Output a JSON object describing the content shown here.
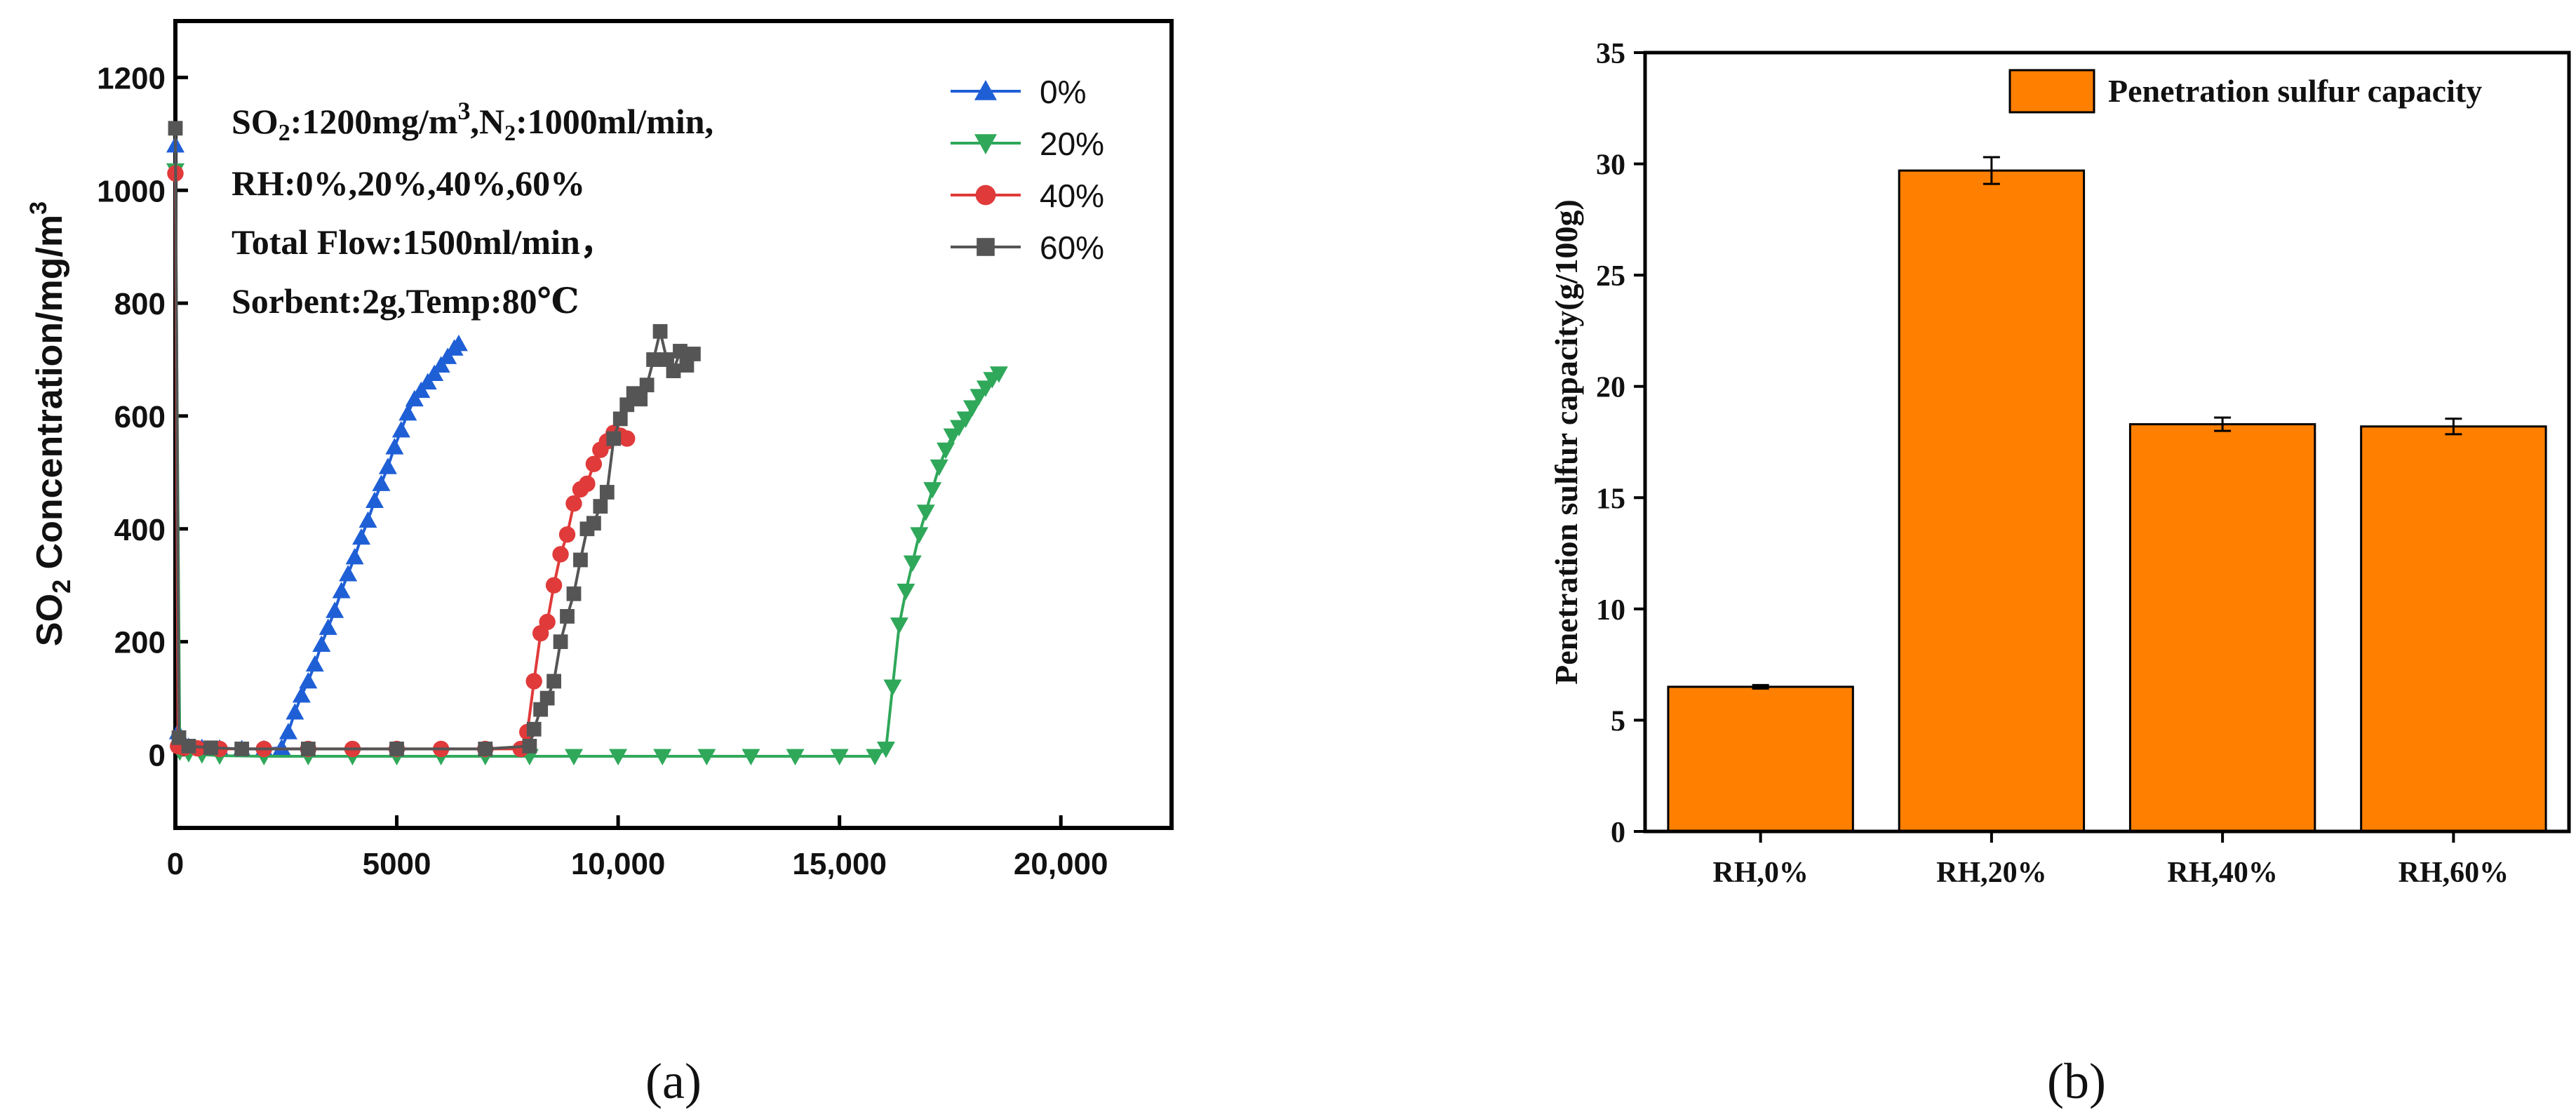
{
  "chart_data": [
    {
      "type": "scatter",
      "panel_label": "(a)",
      "ylabel_main": "SO",
      "ylabel_sub": "2",
      "ylabel_rest": " Concentration/mg/m",
      "ylabel_sup": "3",
      "xlim": [
        0,
        22500
      ],
      "ylim": [
        -130,
        1300
      ],
      "x_ticks": [
        {
          "value": 0,
          "label": "0"
        },
        {
          "value": 5000,
          "label": "5000"
        },
        {
          "value": 10000,
          "label": "10,000"
        },
        {
          "value": 15000,
          "label": "15,000"
        },
        {
          "value": 20000,
          "label": "20,000"
        }
      ],
      "y_ticks": [
        {
          "value": 0,
          "label": "0"
        },
        {
          "value": 200,
          "label": "200"
        },
        {
          "value": 400,
          "label": "400"
        },
        {
          "value": 600,
          "label": "600"
        },
        {
          "value": 800,
          "label": "800"
        },
        {
          "value": 1000,
          "label": "1000"
        },
        {
          "value": 1200,
          "label": "1200"
        }
      ],
      "annotation": {
        "line1_a": "SO",
        "line1_sub": "2",
        "line1_b": ":1200mg/m",
        "line1_sup": "3",
        "line1_c": ",N",
        "line1_sub2": "2",
        "line1_d": ":1000ml/min,",
        "line2": "RH:0%,20%,40%,60%",
        "line3": "Total Flow:1500ml/min，",
        "line4": "Sorbent:2g,Temp:80℃"
      },
      "series": [
        {
          "name": "0%",
          "marker": "triangle-up",
          "color": "#1f5fd6",
          "x": [
            0,
            60,
            150,
            300,
            600,
            1000,
            1500,
            2000,
            2400,
            2550,
            2700,
            2850,
            3000,
            3150,
            3300,
            3450,
            3600,
            3750,
            3900,
            4050,
            4200,
            4350,
            4500,
            4650,
            4800,
            4950,
            5100,
            5250,
            5400,
            5550,
            5700,
            5850,
            6000,
            6150,
            6300,
            6400
          ],
          "y": [
            1080,
            40,
            20,
            14,
            12,
            11,
            10,
            10,
            12,
            40,
            75,
            105,
            130,
            160,
            195,
            225,
            255,
            290,
            320,
            350,
            385,
            415,
            450,
            480,
            510,
            545,
            575,
            605,
            630,
            645,
            660,
            675,
            690,
            705,
            720,
            728
          ]
        },
        {
          "name": "20%",
          "marker": "triangle-down",
          "color": "#2fa85a",
          "x": [
            0,
            100,
            300,
            600,
            1000,
            2000,
            3000,
            4000,
            5000,
            6000,
            7000,
            8000,
            9000,
            10000,
            11000,
            12000,
            13000,
            14000,
            15000,
            15800,
            16050,
            16200,
            16350,
            16500,
            16650,
            16800,
            16950,
            17100,
            17250,
            17400,
            17550,
            17700,
            17850,
            18000,
            18150,
            18300,
            18450,
            18600
          ],
          "y": [
            1035,
            5,
            2,
            0,
            -2,
            -3,
            -3,
            -3,
            -3,
            -3,
            -3,
            -3,
            -3,
            -3,
            -3,
            -3,
            -3,
            -3,
            -3,
            -3,
            10,
            120,
            230,
            290,
            340,
            390,
            430,
            470,
            510,
            540,
            565,
            580,
            595,
            615,
            635,
            650,
            665,
            675
          ]
        },
        {
          "name": "40%",
          "marker": "circle",
          "color": "#e03a3a",
          "x": [
            0,
            60,
            200,
            500,
            1000,
            2000,
            3000,
            4000,
            5000,
            6000,
            7000,
            7800,
            7950,
            8100,
            8250,
            8400,
            8550,
            8700,
            8850,
            9000,
            9150,
            9300,
            9450,
            9600,
            9750,
            9900,
            10050,
            10200
          ],
          "y": [
            1030,
            15,
            12,
            11,
            10,
            10,
            10,
            10,
            10,
            10,
            10,
            10,
            40,
            130,
            215,
            235,
            300,
            355,
            390,
            445,
            470,
            480,
            515,
            540,
            555,
            570,
            565,
            560
          ]
        },
        {
          "name": "60%",
          "marker": "square",
          "color": "#555555",
          "x": [
            0,
            80,
            300,
            800,
            1500,
            3000,
            5000,
            7000,
            8000,
            8100,
            8250,
            8400,
            8550,
            8700,
            8850,
            9000,
            9150,
            9300,
            9450,
            9600,
            9750,
            9900,
            10050,
            10200,
            10350,
            10500,
            10650,
            10800,
            10950,
            11100,
            11250,
            11400,
            11550,
            11700
          ],
          "y": [
            1110,
            30,
            15,
            12,
            10,
            10,
            10,
            10,
            15,
            45,
            80,
            100,
            130,
            200,
            245,
            285,
            345,
            400,
            410,
            440,
            465,
            560,
            595,
            620,
            640,
            630,
            655,
            700,
            750,
            700,
            680,
            715,
            690,
            710
          ]
        }
      ]
    },
    {
      "type": "bar",
      "panel_label": "(b)",
      "ylabel": "Penetration sulfur capacity(g/100g)",
      "legend_label": "Penetration sulfur capacity",
      "categories": [
        "RH,0%",
        "RH,20%",
        "RH,40%",
        "RH,60%"
      ],
      "values": [
        6.5,
        29.7,
        18.3,
        18.2
      ],
      "errors": [
        0.08,
        0.6,
        0.3,
        0.35
      ],
      "ylim": [
        0,
        35
      ],
      "y_ticks": [
        {
          "value": 0,
          "label": "0"
        },
        {
          "value": 5,
          "label": "5"
        },
        {
          "value": 10,
          "label": "10"
        },
        {
          "value": 15,
          "label": "15"
        },
        {
          "value": 20,
          "label": "20"
        },
        {
          "value": 25,
          "label": "25"
        },
        {
          "value": 30,
          "label": "30"
        },
        {
          "value": 35,
          "label": "35"
        }
      ],
      "bar_color": "#ff7f00"
    }
  ]
}
